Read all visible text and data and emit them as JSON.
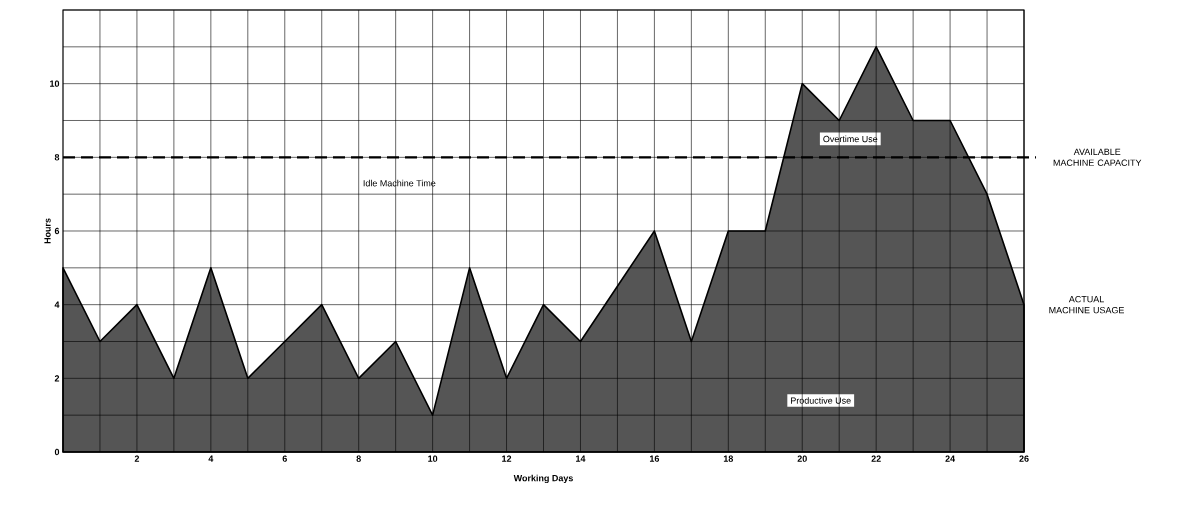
{
  "chart_data": {
    "type": "area",
    "xlabel": "Working Days",
    "ylabel": "Hours",
    "x": [
      0,
      1,
      2,
      3,
      4,
      5,
      6,
      7,
      8,
      9,
      10,
      11,
      12,
      13,
      14,
      15,
      16,
      17,
      18,
      19,
      20,
      21,
      22,
      23,
      24,
      25,
      26
    ],
    "series": [
      {
        "name": "ACTUAL MACHINE USAGE",
        "color": "#555555",
        "values": [
          5,
          3,
          4,
          2,
          5,
          2,
          3,
          4,
          2,
          3,
          1,
          5,
          2,
          4,
          3,
          4.5,
          6,
          3,
          6,
          6,
          10,
          9,
          11,
          9,
          9,
          7,
          4
        ]
      }
    ],
    "xlim": [
      0,
      26
    ],
    "ylim": [
      0,
      12
    ],
    "xticks": [
      {
        "value": 1,
        "label": null
      },
      2,
      {
        "value": 3,
        "label": null
      },
      4,
      {
        "value": 5,
        "label": null
      },
      6,
      {
        "value": 7,
        "label": null
      },
      8,
      {
        "value": 9,
        "label": null
      },
      10,
      {
        "value": 11,
        "label": null
      },
      12,
      {
        "value": 13,
        "label": null
      },
      14,
      {
        "value": 15,
        "label": null
      },
      16,
      {
        "value": 17,
        "label": null
      },
      18,
      {
        "value": 19,
        "label": null
      },
      20,
      {
        "value": 21,
        "label": null
      },
      22,
      {
        "value": 23,
        "label": null
      },
      24,
      {
        "value": 25,
        "label": null
      },
      26
    ],
    "yticks": [
      0,
      {
        "value": 1,
        "label": null
      },
      2,
      {
        "value": 3,
        "label": null
      },
      4,
      {
        "value": 5,
        "label": null
      },
      6,
      {
        "value": 7,
        "label": null
      },
      8,
      {
        "value": 9,
        "label": null
      },
      10,
      {
        "value": 11,
        "label": null
      },
      {
        "value": 12,
        "label": null
      }
    ],
    "grid": true,
    "marker": "none",
    "ref_lines": [
      {
        "axis": "y",
        "value": 8,
        "label": "AVAILABLE MACHINE CAPACITY",
        "line_style": "dashed",
        "color": "#000000"
      }
    ],
    "annotations": [
      "Idle Machine Time",
      "Overtime Use",
      "Productive Use"
    ]
  }
}
